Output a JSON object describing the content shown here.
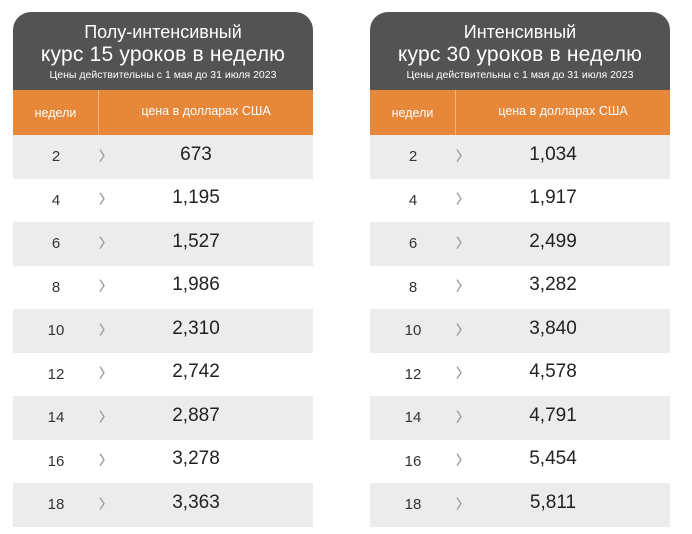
{
  "tables": [
    {
      "title_line1": "Полу-интенсивный",
      "title_line2": "курс 15 уроков в неделю",
      "validity": "Цены действительны с 1 мая до 31 июля 2023",
      "col_weeks": "недели",
      "col_price": "цена в долларах США",
      "rows": [
        {
          "weeks": "2",
          "price": "673"
        },
        {
          "weeks": "4",
          "price": "1,195"
        },
        {
          "weeks": "6",
          "price": "1,527"
        },
        {
          "weeks": "8",
          "price": "1,986"
        },
        {
          "weeks": "10",
          "price": "2,310"
        },
        {
          "weeks": "12",
          "price": "2,742"
        },
        {
          "weeks": "14",
          "price": "2,887"
        },
        {
          "weeks": "16",
          "price": "3,278"
        },
        {
          "weeks": "18",
          "price": "3,363"
        }
      ]
    },
    {
      "title_line1": "Интенсивный",
      "title_line2": "курс 30 уроков в неделю",
      "validity": "Цены действительны с 1 мая до 31 июля 2023",
      "col_weeks": "недели",
      "col_price": "цена в долларах США",
      "rows": [
        {
          "weeks": "2",
          "price": "1,034"
        },
        {
          "weeks": "4",
          "price": "1,917"
        },
        {
          "weeks": "6",
          "price": "2,499"
        },
        {
          "weeks": "8",
          "price": "3,282"
        },
        {
          "weeks": "10",
          "price": "3,840"
        },
        {
          "weeks": "12",
          "price": "4,578"
        },
        {
          "weeks": "14",
          "price": "4,791"
        },
        {
          "weeks": "16",
          "price": "5,454"
        },
        {
          "weeks": "18",
          "price": "5,811"
        }
      ]
    }
  ],
  "colors": {
    "header_bg": "#535353",
    "column_header_bg": "#e6873a",
    "shaded_row_bg": "#ececec"
  },
  "icons": {
    "row_marker": "chevron-right-icon"
  }
}
